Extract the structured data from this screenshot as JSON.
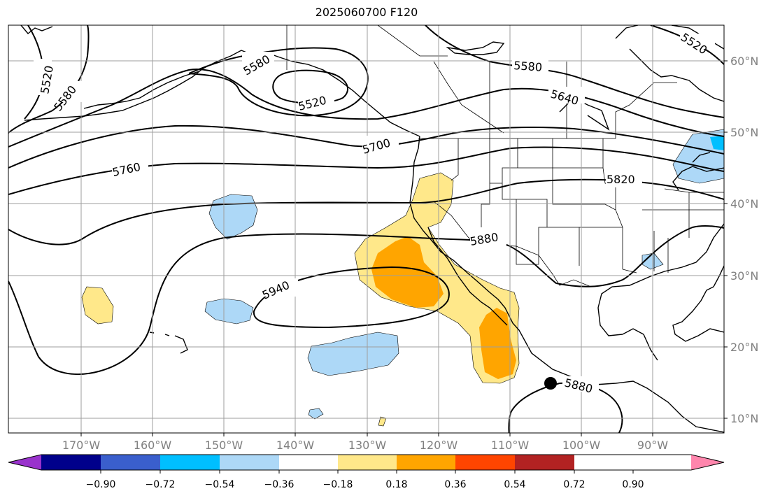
{
  "title": "2025060700 F120",
  "height_contours": [
    {
      "value": "5520",
      "labels": [
        "5520",
        "5520",
        "5520"
      ]
    },
    {
      "value": "5580",
      "labels": [
        "5580",
        "5580",
        "5580"
      ]
    },
    {
      "value": "5640",
      "labels": [
        "5640"
      ]
    },
    {
      "value": "5700",
      "labels": [
        "5700"
      ]
    },
    {
      "value": "5760",
      "labels": [
        "5760"
      ]
    },
    {
      "value": "5820",
      "labels": [
        "5820"
      ]
    },
    {
      "value": "5880",
      "labels": [
        "5880",
        "5880"
      ]
    },
    {
      "value": "5940",
      "labels": [
        "5940"
      ]
    }
  ],
  "axes": {
    "lon_labels": [
      "170°W",
      "160°W",
      "150°W",
      "140°W",
      "130°W",
      "120°W",
      "110°W",
      "100°W",
      "90°W"
    ],
    "lat_labels": [
      "60°N",
      "50°N",
      "40°N",
      "30°N",
      "20°N",
      "10°N"
    ]
  },
  "colorbar": {
    "ticks": [
      "−0.90",
      "−0.72",
      "−0.54",
      "−0.36",
      "−0.18",
      "0.18",
      "0.36",
      "0.54",
      "0.72",
      "0.90"
    ],
    "colors": [
      "#9932cc",
      "#00008b",
      "#3a5fcd",
      "#00bfff",
      "#add8f7",
      "#ffffff",
      "#ffe88a",
      "#ffa500",
      "#ff4500",
      "#b22222",
      "#ff86ad"
    ]
  },
  "marker": {
    "label": "5880"
  }
}
